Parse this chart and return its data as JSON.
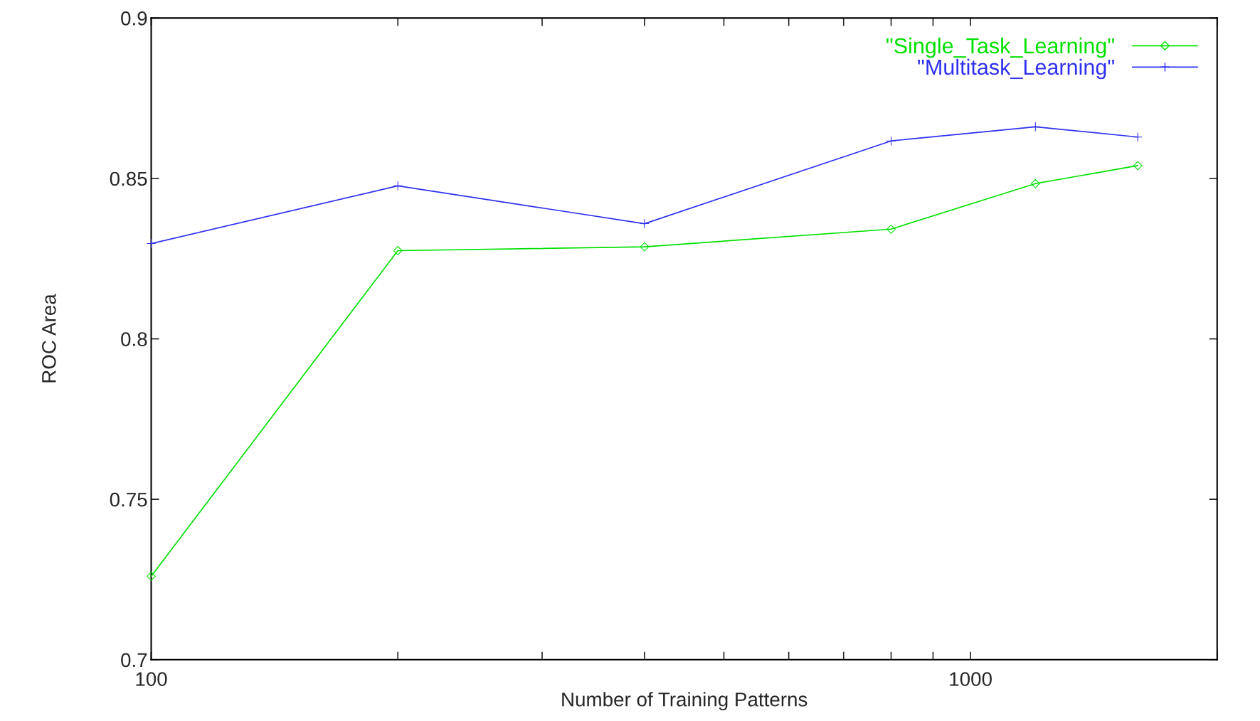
{
  "chart_data": {
    "type": "line",
    "xlabel": "Number of Training Patterns",
    "ylabel": "ROC Area",
    "x": [
      100,
      200,
      400,
      800,
      1200,
      1600
    ],
    "series": [
      {
        "name": "\"Single_Task_Learning\"",
        "color": "#00e000",
        "marker": "diamond",
        "values": [
          0.726,
          0.8275,
          0.8287,
          0.8342,
          0.8484,
          0.854
        ]
      },
      {
        "name": "\"Multitask_Learning\"",
        "color": "#3030f0",
        "marker": "cross",
        "values": [
          0.8297,
          0.8477,
          0.8359,
          0.8617,
          0.8661,
          0.8629
        ]
      }
    ],
    "log": "x",
    "xlim": [
      100,
      2000
    ],
    "ylim": [
      0.7,
      0.9
    ],
    "xticks": [
      100,
      {
        "value": 200,
        "label": null
      },
      {
        "value": 300,
        "label": null
      },
      {
        "value": 400,
        "label": null
      },
      {
        "value": 500,
        "label": null
      },
      {
        "value": 600,
        "label": null
      },
      {
        "value": 700,
        "label": null
      },
      {
        "value": 800,
        "label": null
      },
      {
        "value": 900,
        "label": null
      },
      1000,
      {
        "value": 2000,
        "label": null
      }
    ],
    "yticks": [
      0.7,
      0.75,
      0.8,
      0.85,
      0.9
    ],
    "grid": false,
    "legend": "top right",
    "line_style": "solid"
  }
}
